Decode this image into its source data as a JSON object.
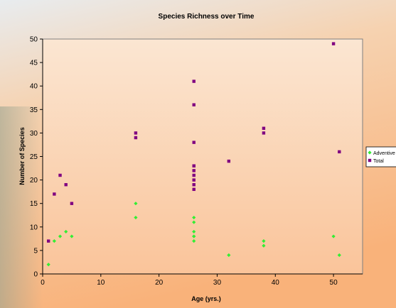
{
  "chart_data": {
    "type": "scatter",
    "title": "Species Richness over Time",
    "x_label": "Age (yrs.)",
    "y_label": "Number of Species",
    "xlim": [
      0,
      55
    ],
    "ylim": [
      0,
      50
    ],
    "xticks": [
      0,
      10,
      20,
      30,
      40,
      50
    ],
    "yticks": [
      0,
      5,
      10,
      15,
      20,
      25,
      30,
      35,
      40,
      45,
      50
    ],
    "grid": false,
    "legend": "right",
    "series": [
      {
        "name": "Adventive",
        "color": "#33ee33",
        "marker": "diamond",
        "x": [
          1,
          2,
          3,
          4,
          5,
          16,
          16,
          26,
          26,
          26,
          26,
          26,
          26,
          32,
          38,
          38,
          50,
          51
        ],
        "values": [
          2,
          7,
          8,
          9,
          8,
          15,
          12,
          12,
          11,
          9,
          8,
          8,
          7,
          4,
          7,
          6,
          8,
          4
        ]
      },
      {
        "name": "Total",
        "color": "#800080",
        "marker": "square",
        "x": [
          1,
          2,
          3,
          4,
          5,
          16,
          16,
          26,
          26,
          26,
          26,
          26,
          26,
          26,
          26,
          26,
          26,
          32,
          38,
          38,
          50,
          51
        ],
        "values": [
          7,
          17,
          21,
          19,
          15,
          30,
          29,
          41,
          36,
          28,
          23,
          22,
          21,
          20,
          19,
          18,
          23,
          24,
          31,
          30,
          49,
          26
        ]
      }
    ]
  }
}
